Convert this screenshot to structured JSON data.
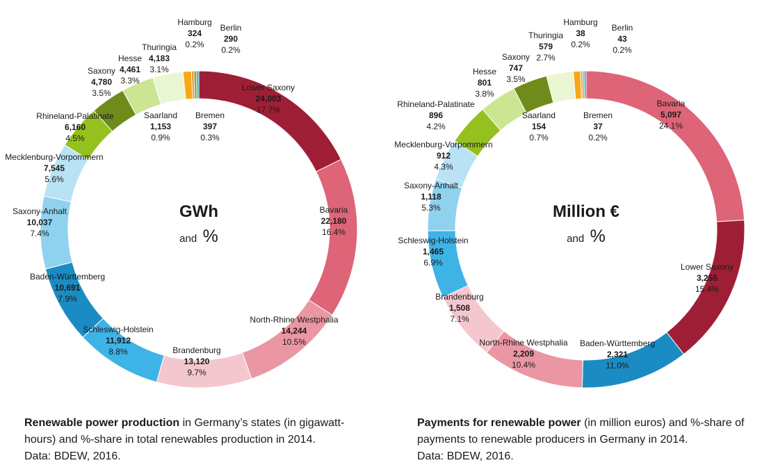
{
  "chart_data": [
    {
      "type": "pie",
      "center_unit": "GWh",
      "center_and": "and",
      "center_pct": "%",
      "slices": [
        {
          "name": "Lower Saxony",
          "value_label": "24,003",
          "value": 24003,
          "pct": "17.7%",
          "color": "#9e1f35"
        },
        {
          "name": "Bavaria",
          "value_label": "22,180",
          "value": 22180,
          "pct": "16.4%",
          "color": "#de6478"
        },
        {
          "name": "North-Rhine Westphalia",
          "value_label": "14,244",
          "value": 14244,
          "pct": "10.5%",
          "color": "#ea96a3"
        },
        {
          "name": "Brandenburg",
          "value_label": "13,120",
          "value": 13120,
          "pct": "9.7%",
          "color": "#f4c7ce"
        },
        {
          "name": "Schleswig-Holstein",
          "value_label": "11,912",
          "value": 11912,
          "pct": "8.8%",
          "color": "#3eb3e6"
        },
        {
          "name": "Baden-Württemberg",
          "value_label": "10,691",
          "value": 10691,
          "pct": "7.9%",
          "color": "#1b8cc3"
        },
        {
          "name": "Saxony-Anhalt",
          "value_label": "10,037",
          "value": 10037,
          "pct": "7.4%",
          "color": "#8fd2ef"
        },
        {
          "name": "Mecklenburg-Vorpommern",
          "value_label": "7,545",
          "value": 7545,
          "pct": "5.6%",
          "color": "#b9e2f4"
        },
        {
          "name": "Rhineland-Palatinate",
          "value_label": "6,160",
          "value": 6160,
          "pct": "4.5%",
          "color": "#95c11f"
        },
        {
          "name": "Saxony",
          "value_label": "4,780",
          "value": 4780,
          "pct": "3.5%",
          "color": "#6f8c1b"
        },
        {
          "name": "Hesse",
          "value_label": "4,461",
          "value": 4461,
          "pct": "3.3%",
          "color": "#cbe592"
        },
        {
          "name": "Thuringia",
          "value_label": "4,183",
          "value": 4183,
          "pct": "3.1%",
          "color": "#eaf5d2"
        },
        {
          "name": "Saarland",
          "value_label": "1,153",
          "value": 1153,
          "pct": "0.9%",
          "color": "#f6a81a"
        },
        {
          "name": "Hamburg",
          "value_label": "324",
          "value": 324,
          "pct": "0.2%",
          "color": "#f08a2a"
        },
        {
          "name": "Bremen",
          "value_label": "397",
          "value": 397,
          "pct": "0.3%",
          "color": "#7ab43c"
        },
        {
          "name": "Berlin",
          "value_label": "290",
          "value": 290,
          "pct": "0.2%",
          "color": "#2e9fd6"
        }
      ]
    },
    {
      "type": "pie",
      "center_unit": "Million €",
      "center_and": "and",
      "center_pct": "%",
      "slices": [
        {
          "name": "Bavaria",
          "value_label": "5,097",
          "value": 5097,
          "pct": "24.1%",
          "color": "#de6478"
        },
        {
          "name": "Lower Saxony",
          "value_label": "3,255",
          "value": 3255,
          "pct": "15.4%",
          "color": "#9e1f35"
        },
        {
          "name": "Baden-Württemberg",
          "value_label": "2,321",
          "value": 2321,
          "pct": "11.0%",
          "color": "#1b8cc3"
        },
        {
          "name": "North-Rhine Westphalia",
          "value_label": "2,209",
          "value": 2209,
          "pct": "10.4%",
          "color": "#ea96a3"
        },
        {
          "name": "Brandenburg",
          "value_label": "1,508",
          "value": 1508,
          "pct": "7.1%",
          "color": "#f4c7ce"
        },
        {
          "name": "Schleswig-Holstein",
          "value_label": "1,465",
          "value": 1465,
          "pct": "6.9%",
          "color": "#3eb3e6"
        },
        {
          "name": "Saxony-Anhalt",
          "value_label": "1,118",
          "value": 1118,
          "pct": "5.3%",
          "color": "#8fd2ef"
        },
        {
          "name": "Mecklenburg-Vorpommern",
          "value_label": "912",
          "value": 912,
          "pct": "4.3%",
          "color": "#b9e2f4"
        },
        {
          "name": "Rhineland-Palatinate",
          "value_label": "896",
          "value": 896,
          "pct": "4.2%",
          "color": "#95c11f"
        },
        {
          "name": "Hesse",
          "value_label": "801",
          "value": 801,
          "pct": "3.8%",
          "color": "#cbe592"
        },
        {
          "name": "Saxony",
          "value_label": "747",
          "value": 747,
          "pct": "3.5%",
          "color": "#6f8c1b"
        },
        {
          "name": "Thuringia",
          "value_label": "579",
          "value": 579,
          "pct": "2.7%",
          "color": "#eaf5d2"
        },
        {
          "name": "Saarland",
          "value_label": "154",
          "value": 154,
          "pct": "0.7%",
          "color": "#f6a81a"
        },
        {
          "name": "Hamburg",
          "value_label": "38",
          "value": 38,
          "pct": "0.2%",
          "color": "#f08a2a"
        },
        {
          "name": "Bremen",
          "value_label": "37",
          "value": 37,
          "pct": "0.2%",
          "color": "#7ab43c"
        },
        {
          "name": "Berlin",
          "value_label": "43",
          "value": 43,
          "pct": "0.2%",
          "color": "#2e9fd6"
        }
      ]
    }
  ],
  "captions": {
    "left_bold": "Renewable power production",
    "left_rest": " in Germany’s states (in gigawatt-hours) and %-share in total renewables production in 2014.",
    "left_source": "Data: BDEW, 2016.",
    "right_bold": "Payments for renewable power",
    "right_rest": " (in million euros) and %-share of payments to renewable producers in Germany in 2014.",
    "right_source": "Data: BDEW, 2016."
  }
}
